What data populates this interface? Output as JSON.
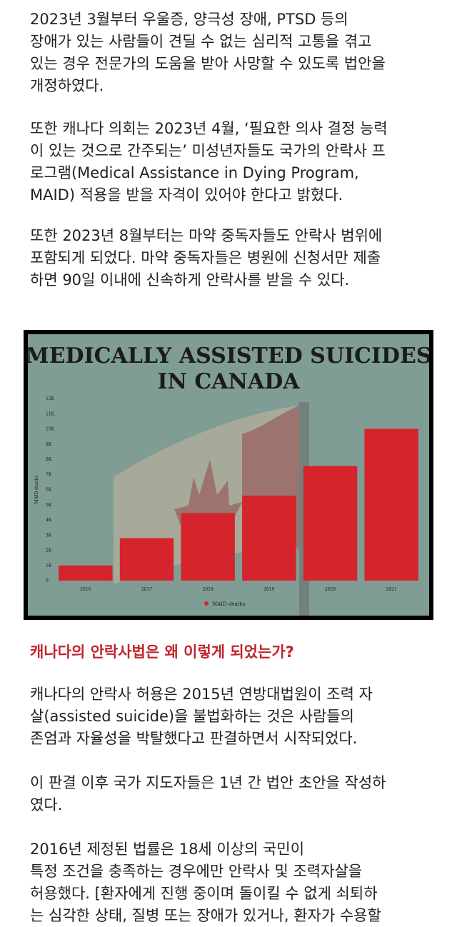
{
  "paragraphs": {
    "p1": [
      "2023년 3월부터 우울증, 양극성 장애, PTSD 등의",
      "장애가 있는 사람들이 견딜 수 없는 심리적 고통을 겪고",
      "있는 경우 전문가의 도움을 받아 사망할 수 있도록 법안을",
      "개정하였다."
    ],
    "p2": [
      "또한 캐나다 의회는 2023년 4월, ‘필요한 의사 결정 능력",
      "이 있는 것으로 간주되는’ 미성년자들도 국가의 안락사 프",
      "로그램(Medical Assistance in Dying Program,",
      "MAID) 적용을 받을 자격이 있어야 한다고 밝혔다."
    ],
    "p3": [
      "또한 2023년 8월부터는 마약 중독자들도 안락사 범위에",
      "포함되게 되었다. 마약 중독자들은 병원에 신청서만 제출",
      "하면 90일 이내에 신속하게 안락사를 받을 수 있다."
    ],
    "subheading": "캐나다의 안락사법은 왜 이렇게 되었는가?",
    "p4": [
      "캐나다의 안락사 허용은 2015년 연방대법원이 조력 자",
      "살(assisted suicide)을 불법화하는 것은 사람들의",
      "존엄과 자율성을 박탈했다고 판결하면서 시작되었다."
    ],
    "p5": [
      "이 판결 이후 국가 지도자들은 1년 간 법안 초안을 작성하",
      "였다."
    ],
    "p6": [
      "2016년 제정된 법률은 18세 이상의 국민이",
      "특정 조건을 충족하는 경우에만 안락사 및 조력자살을",
      "허용했다. [환자에게 진행 중이며 돌이킬 수 없게 쇠퇴하",
      "는 심각한 상태, 질병 또는 장애가 있거나, 환자가 수용할"
    ]
  },
  "colors": {
    "bar": "#d5242b",
    "background": "#7f9c95",
    "frame": "#000000",
    "subheading": "#c0262d"
  },
  "chart_data": {
    "type": "bar",
    "title": "MEDICALLY ASSISTED SUICIDES\nIN CANADA",
    "ylabel": "MAID deaths",
    "categories": [
      "2016",
      "2017",
      "2018",
      "2019",
      "2020",
      "2021"
    ],
    "series": [
      {
        "name": "MAID deaths",
        "values": [
          1000,
          2800,
          4450,
          5600,
          7550,
          10000
        ]
      }
    ],
    "ylim": [
      0,
      12000
    ],
    "yticks": [
      "0",
      "1K",
      "2K",
      "3K",
      "4K",
      "5K",
      "6K",
      "7K",
      "8K",
      "9K",
      "10K",
      "11K",
      "12K"
    ],
    "grid": false,
    "legend": "bottom-center"
  }
}
